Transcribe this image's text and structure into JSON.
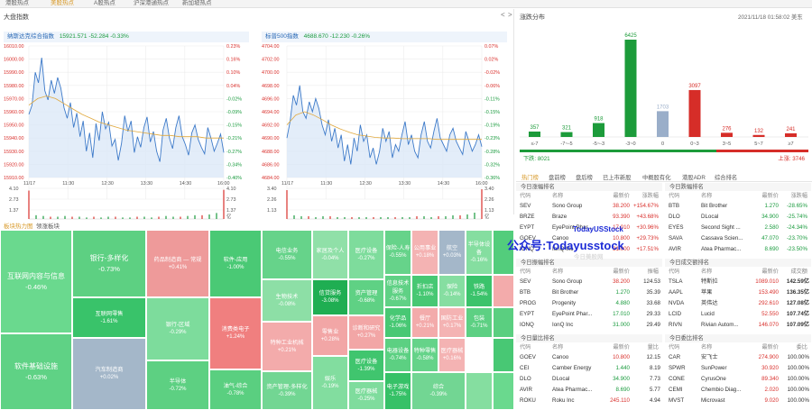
{
  "top_tabs": [
    {
      "label": "港股热点",
      "active": false
    },
    {
      "label": "美股热点",
      "active": true
    },
    {
      "label": "A股热点",
      "active": false
    },
    {
      "label": "沪深港通热点",
      "active": false
    },
    {
      "label": "新加坡热点",
      "active": false
    }
  ],
  "market_index": {
    "title": "大盘指数",
    "nav_prev": "<",
    "nav_next": ">",
    "charts": [
      {
        "name": "纳斯达克综合指数",
        "value": "15921.571",
        "change": "-52.284",
        "pct": "-0.33%",
        "y_ticks": [
          "16010.00",
          "16000.00",
          "15990.00",
          "15980.00",
          "15970.00",
          "15960.00",
          "15950.00",
          "15940.00",
          "15930.00",
          "15920.00",
          "15910.00"
        ],
        "pct_ticks": [
          "0.23%",
          "0.16%",
          "0.10%",
          "0.04%",
          "-0.02%",
          "-0.09%",
          "-0.15%",
          "-0.21%",
          "-0.27%",
          "-0.34%",
          "-0.40%"
        ],
        "x_ticks": [
          "11/17",
          "11:30",
          "12:30",
          "13:30",
          "14:30",
          "16:00"
        ],
        "vol_ticks_left": [
          "4.10",
          "2.73",
          "1.37"
        ],
        "vol_ticks_right": [
          "4.10",
          "2.73",
          "1.37",
          "亿"
        ],
        "price_series": [
          15958,
          15965,
          15990,
          15982,
          16001,
          15976,
          15969,
          15984,
          15974,
          15986,
          15978,
          15963,
          15955,
          15967,
          15948,
          15959,
          15941,
          15953,
          15930,
          15944,
          15925,
          15951,
          15938,
          15960,
          15947,
          15952,
          15934,
          15939,
          15923,
          15936,
          15957,
          15945,
          15953,
          15929,
          15941,
          15933,
          15948,
          15956,
          15937,
          15945,
          15930,
          15922,
          15946,
          15955,
          15940,
          15932,
          15948,
          15957,
          15941,
          15935,
          15927,
          15944,
          15950,
          15939,
          15933,
          15928,
          15948,
          15940,
          15930,
          15936,
          15943,
          15929
        ],
        "avg_series": [
          15965,
          15970,
          15972,
          15970,
          15966,
          15962,
          15958,
          15955,
          15952,
          15950,
          15948,
          15946,
          15945,
          15944,
          15943,
          15942,
          15942,
          15941,
          15941,
          15941,
          15940,
          15940,
          15940
        ],
        "volume_series": [
          3.8,
          0.5,
          0.4,
          0.3,
          0.3,
          0.4,
          0.3,
          0.3,
          0.2,
          0.3,
          0.2,
          0.3,
          0.3,
          0.2,
          0.2,
          0.3,
          0.3,
          0.2,
          0.3,
          0.4,
          0.3,
          0.3,
          0.4,
          0.5,
          0.5,
          0.6,
          0.8,
          3.9
        ]
      },
      {
        "name": "标普500指数",
        "value": "4688.670",
        "change": "-12.230",
        "pct": "-0.26%",
        "y_ticks": [
          "4704.00",
          "4702.00",
          "4700.00",
          "4698.00",
          "4696.00",
          "4694.00",
          "4692.00",
          "4690.00",
          "4688.00",
          "4686.00",
          "4684.00"
        ],
        "pct_ticks": [
          "0.07%",
          "0.02%",
          "-0.02%",
          "-0.06%",
          "-0.11%",
          "-0.15%",
          "-0.19%",
          "-0.23%",
          "-0.28%",
          "-0.32%",
          "-0.36%"
        ],
        "x_ticks": [
          "11/17",
          "11:30",
          "12:30",
          "13:30",
          "14:30",
          "16:00"
        ],
        "vol_ticks_left": [
          "3.40",
          "2.26",
          "1.13"
        ],
        "vol_ticks_right": [
          "3.40",
          "2.26",
          "1.13",
          "亿"
        ],
        "price_series": [
          4690,
          4692.5,
          4696.5,
          4695,
          4698,
          4694,
          4693,
          4695.5,
          4694,
          4696,
          4694.5,
          4692,
          4690.5,
          4692.8,
          4689.5,
          4691.5,
          4688.5,
          4690.5,
          4686.5,
          4689,
          4686,
          4690,
          4688,
          4692,
          4689.5,
          4690.5,
          4687,
          4688.5,
          4686,
          4688,
          4691.5,
          4689.5,
          4691,
          4687,
          4689,
          4688,
          4690.5,
          4692.5,
          4689,
          4690.5,
          4688,
          4687,
          4690.5,
          4692.5,
          4689.5,
          4688.5,
          4691,
          4693,
          4690,
          4689,
          4688,
          4690.5,
          4691.5,
          4689.5,
          4688.5,
          4687.5,
          4691,
          4689.5,
          4688,
          4689,
          4690.5,
          4688.7
        ],
        "avg_series": [
          4692,
          4693.5,
          4694,
          4693.5,
          4692.8,
          4692,
          4691.4,
          4690.9,
          4690.5,
          4690.3,
          4690.1,
          4690,
          4690,
          4689.9,
          4689.9,
          4689.9,
          4689.9,
          4689.8,
          4689.8,
          4689.8,
          4689.8,
          4689.8,
          4689.8
        ],
        "volume_series": [
          3.2,
          0.4,
          0.3,
          0.3,
          0.2,
          0.3,
          0.3,
          0.2,
          0.2,
          0.2,
          0.2,
          0.2,
          0.2,
          0.2,
          0.2,
          0.2,
          0.2,
          0.2,
          0.3,
          0.3,
          0.2,
          0.3,
          0.3,
          0.4,
          0.4,
          0.5,
          0.7,
          3.3
        ]
      }
    ]
  },
  "distribution": {
    "title": "涨跌分布",
    "datetime": "2021/11/18 01:58:02 美东",
    "down_label": "下跌: 8021",
    "up_label": "上涨: 3746",
    "buckets": [
      {
        "label": "≤-7",
        "value": 357,
        "color": "#1c9b3a"
      },
      {
        "label": "-7~-5",
        "value": 321,
        "color": "#1c9b3a"
      },
      {
        "label": "-5~-3",
        "value": 918,
        "color": "#1c9b3a"
      },
      {
        "label": "-3~0",
        "value": 6425,
        "color": "#1c9b3a"
      },
      {
        "label": "0",
        "value": 1703,
        "color": "#9aaec9"
      },
      {
        "label": "0~3",
        "value": 3097,
        "color": "#d62d28"
      },
      {
        "label": "3~5",
        "value": 276,
        "color": "#d62d28"
      },
      {
        "label": "5~7",
        "value": 132,
        "color": "#d62d28"
      },
      {
        "label": "≥7",
        "value": 241,
        "color": "#d62d28"
      }
    ]
  },
  "heatmap": {
    "title": "板块热力图",
    "sub": "领涨板块",
    "tiles": [
      {
        "name": "互联网内容与信息",
        "pct": "-0.46%",
        "color": "#6ad98e",
        "big": true
      },
      {
        "name": "软件基础设施",
        "pct": "-0.63%",
        "color": "#5fd285",
        "big": true
      },
      {
        "name": "银行-多样化",
        "pct": "-0.73%",
        "color": "#5dd082",
        "big": true
      },
      {
        "name": "互联网零售",
        "pct": "-1.61%",
        "color": "#39c36a",
        "big": false
      },
      {
        "name": "汽车制造商",
        "pct": "+0.02%",
        "color": "#a4b7c9",
        "big": false
      },
      {
        "name": "药品制造商 — 常规",
        "pct": "+0.41%",
        "color": "#ee9a9a",
        "big": false
      },
      {
        "name": "银行-区域",
        "pct": "-0.29%",
        "color": "#7ddc9c",
        "big": false
      },
      {
        "name": "半导体",
        "pct": "-0.72%",
        "color": "#5dd082",
        "big": false
      },
      {
        "name": "软件-应用",
        "pct": "-1.00%",
        "color": "#4ac975",
        "big": false
      },
      {
        "name": "消费类电子",
        "pct": "+1.24%",
        "color": "#f07f7f",
        "big": false
      },
      {
        "name": "油气-综合",
        "pct": "-0.78%",
        "color": "#5acf80",
        "big": false
      },
      {
        "name": "电信业务",
        "pct": "-0.55%",
        "color": "#66d38a",
        "big": false
      },
      {
        "name": "生物技术",
        "pct": "-0.08%",
        "color": "#8ddfa6",
        "big": false
      },
      {
        "name": "特种工业机械",
        "pct": "+0.21%",
        "color": "#f3abab",
        "big": false
      },
      {
        "name": "资产管理-多样化",
        "pct": "-0.39%",
        "color": "#72d693",
        "big": false
      },
      {
        "name": "家居及个人",
        "pct": "-0.04%",
        "color": "#90e0a8",
        "big": false
      },
      {
        "name": "信贷服务",
        "pct": "-3.08%",
        "color": "#1fae52",
        "big": false
      },
      {
        "name": "零售业",
        "pct": "+0.28%",
        "color": "#f2a6a6",
        "big": false
      },
      {
        "name": "娱乐",
        "pct": "-0.19%",
        "color": "#82dd9f",
        "big": false
      },
      {
        "name": "医疗设备",
        "pct": "-0.27%",
        "color": "#7edc9c",
        "big": false
      },
      {
        "name": "资产管理",
        "pct": "-0.68%",
        "color": "#5fd184",
        "big": false
      },
      {
        "name": "诊断和研究",
        "pct": "+0.27%",
        "color": "#f2a6a6",
        "big": false
      },
      {
        "name": "医疗设备",
        "pct": "-1.39%",
        "color": "#40c56e",
        "big": false
      },
      {
        "name": "医疗器械",
        "pct": "-0.25%",
        "color": "#7fdc9d",
        "big": false
      },
      {
        "name": "保险-人寿",
        "pct": "-0.55%",
        "color": "#66d38a",
        "big": false
      },
      {
        "name": "信息技术服务",
        "pct": "-0.67%",
        "color": "#60d185",
        "big": false
      },
      {
        "name": "公用事业",
        "pct": "+0.18%",
        "color": "#f4b3b3",
        "big": false
      },
      {
        "name": "折扣店",
        "pct": "-1.10%",
        "color": "#47c873",
        "big": false
      },
      {
        "name": "化学品",
        "pct": "-1.06%",
        "color": "#48c874",
        "big": false
      },
      {
        "name": "餐厅",
        "pct": "+0.21%",
        "color": "#f3abab",
        "big": false
      },
      {
        "name": "航空",
        "pct": "+0.03%",
        "color": "#a4b7c9",
        "big": false
      },
      {
        "name": "保险",
        "pct": "-0.14%",
        "color": "#86de a1",
        "big": false
      },
      {
        "name": "半导体设备",
        "pct": "-0.16%",
        "color": "#85dea0",
        "big": false
      },
      {
        "name": "国防工业",
        "pct": "+0.17%",
        "color": "#f4b3b3",
        "big": false
      },
      {
        "name": "铁路",
        "pct": "-1.54%",
        "color": "#3bc36b",
        "big": false
      },
      {
        "name": "电器设备",
        "pct": "-0.74%",
        "color": "#5cd082",
        "big": false
      },
      {
        "name": "特种零售",
        "pct": "-0.58%",
        "color": "#65d389",
        "big": false
      },
      {
        "name": "医疗器械",
        "pct": "+0.16%",
        "color": "#f4b3b3",
        "big": false
      },
      {
        "name": "包装",
        "pct": "-0.71%",
        "color": "#5dd083",
        "big": false
      },
      {
        "name": "电子游戏",
        "pct": "-1.75%",
        "color": "#36c167",
        "big": false
      },
      {
        "name": "综合",
        "pct": "-0.39%",
        "color": "#72d693",
        "big": false
      }
    ]
  },
  "rank_tabs": [
    {
      "label": "热门榜",
      "active": true
    },
    {
      "label": "盘前榜",
      "active": false
    },
    {
      "label": "盘后榜",
      "active": false
    },
    {
      "label": "已上市新股",
      "active": false
    },
    {
      "label": "中概股有化",
      "active": false
    },
    {
      "label": "港股ADR",
      "active": false
    },
    {
      "label": "综合排名",
      "active": false
    }
  ],
  "rank_tables": [
    {
      "title": "今日涨幅排名",
      "headers": [
        "代码",
        "名称",
        "最新价",
        "涨跌幅"
      ],
      "rows": [
        [
          "SEV",
          "Sono Group",
          "38.200",
          "+154.67%"
        ],
        [
          "BRZE",
          "Braze",
          "93.390",
          "+43.68%"
        ],
        [
          "EYPT",
          "EyePoint Phar...",
          "17.010",
          "+30.96%"
        ],
        [
          "GOEV",
          "Canoo",
          "10.800",
          "+29.73%"
        ],
        [
          "IONQ",
          "IonQ Inc",
          "31.000",
          "+17.51%"
        ]
      ]
    },
    {
      "title": "今日跌幅排名",
      "headers": [
        "代码",
        "名称",
        "最新价",
        "涨跌幅"
      ],
      "rows": [
        [
          "BTB",
          "Bit Brother",
          "1.270",
          "-28.65%"
        ],
        [
          "DLO",
          "DLocal",
          "34.900",
          "-25.74%"
        ],
        [
          "EYES",
          "Second Sight ...",
          "2.580",
          "-24.34%"
        ],
        [
          "SAVA",
          "Cassava Scien...",
          "47.070",
          "-23.70%"
        ],
        [
          "AVIR",
          "Atea Pharmac...",
          "8.690",
          "-23.50%"
        ]
      ]
    },
    {
      "title": "今日振幅排名",
      "headers": [
        "代码",
        "名称",
        "最新价",
        "振幅"
      ],
      "rows": [
        [
          "SEV",
          "Sono Group",
          "38.200",
          "124.53"
        ],
        [
          "BTB",
          "Bit Brother",
          "1.270",
          "35.39"
        ],
        [
          "PROG",
          "Progenity",
          "4.880",
          "33.68"
        ],
        [
          "EYPT",
          "EyePoint Phar...",
          "17.010",
          "29.33"
        ],
        [
          "IONQ",
          "IonQ Inc",
          "31.000",
          "29.49"
        ]
      ]
    },
    {
      "title": "今日成交额排名",
      "headers": [
        "代码",
        "名称",
        "最新价",
        "成交额"
      ],
      "rows": [
        [
          "TSLA",
          "特斯拉",
          "1089.010",
          "142.59亿"
        ],
        [
          "AAPL",
          "苹果",
          "153.490",
          "136.35亿"
        ],
        [
          "NVDA",
          "英伟达",
          "292.610",
          "127.08亿"
        ],
        [
          "LCID",
          "Lucid",
          "52.550",
          "107.74亿"
        ],
        [
          "RIVN",
          "Rivian Autom...",
          "146.070",
          "107.09亿"
        ]
      ]
    },
    {
      "title": "今日量比排名",
      "headers": [
        "代码",
        "名称",
        "最新价",
        "量比"
      ],
      "rows": [
        [
          "GOEV",
          "Canoo",
          "10.800",
          "12.15"
        ],
        [
          "CEI",
          "Camber Energy",
          "1.440",
          "8.19"
        ],
        [
          "DLO",
          "DLocal",
          "34.900",
          "7.73"
        ],
        [
          "AVIR",
          "Atea Pharmac...",
          "8.690",
          "5.77"
        ],
        [
          "ROKU",
          "Roku Inc",
          "245.110",
          "4.94"
        ]
      ]
    },
    {
      "title": "今日委比排名",
      "headers": [
        "代码",
        "名称",
        "最新价",
        "委比"
      ],
      "rows": [
        [
          "CAR",
          "安飞士",
          "274.900",
          "100.00%"
        ],
        [
          "SPWR",
          "SunPower",
          "30.920",
          "100.00%"
        ],
        [
          "CONE",
          "CyrusOne",
          "89.340",
          "100.00%"
        ],
        [
          "CEMI",
          "Chembio Diag...",
          "2.020",
          "100.00%"
        ],
        [
          "MVST",
          "Microvast",
          "9.020",
          "100.00%"
        ]
      ]
    }
  ],
  "watermark": {
    "line1": "TodayUSStock",
    "line2": "公众号:Todayusstock",
    "line3": "今日美股网"
  }
}
